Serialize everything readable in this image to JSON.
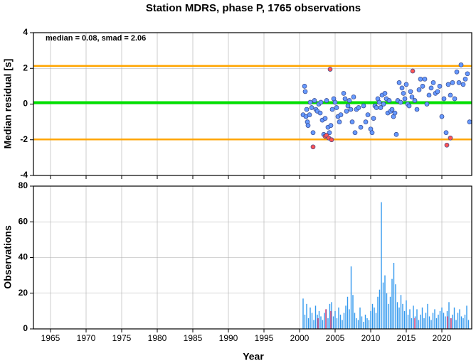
{
  "chart_data": [
    {
      "type": "scatter",
      "title": "Station MDRS, phase P, 1765 observations",
      "ylabel": "Median residual [s]",
      "annotation": "median = 0.08, smad = 2.06",
      "xlim": [
        1962.6,
        2024.2
      ],
      "xticks": [
        1965,
        1970,
        1975,
        1980,
        1985,
        1990,
        1995,
        2000,
        2005,
        2010,
        2015,
        2020
      ],
      "ylim": [
        -4,
        4
      ],
      "yticks": [
        -4,
        -2,
        0,
        2,
        4
      ],
      "grid": true,
      "hlines": [
        {
          "value": 2.14,
          "color": "#ffa500"
        },
        {
          "value": 0.08,
          "color": "#00e000"
        },
        {
          "value": -1.98,
          "color": "#ffa500"
        }
      ],
      "series": [
        {
          "color": "#6699ff",
          "x": [
            2000.5,
            2000.7,
            2000.8,
            2000.9,
            2001.0,
            2001.1,
            2001.2,
            2001.4,
            2001.5,
            2001.7,
            2001.9,
            2002.1,
            2002.3,
            2002.5,
            2002.7,
            2002.9,
            2003.0,
            2003.2,
            2003.4,
            2003.6,
            2003.8,
            2004.0,
            2004.2,
            2004.4,
            2004.6,
            2004.8,
            2005.0,
            2005.2,
            2005.4,
            2005.6,
            2005.8,
            2006.2,
            2006.4,
            2006.6,
            2006.8,
            2007.0,
            2007.2,
            2007.4,
            2007.6,
            2007.8,
            2008.0,
            2008.3,
            2008.6,
            2009.0,
            2009.3,
            2009.6,
            2010.0,
            2010.2,
            2010.4,
            2010.6,
            2010.8,
            2011.0,
            2011.2,
            2011.4,
            2011.6,
            2011.8,
            2012.0,
            2012.2,
            2012.4,
            2012.6,
            2012.8,
            2013.0,
            2013.2,
            2013.4,
            2013.6,
            2013.8,
            2014.0,
            2014.2,
            2014.4,
            2014.6,
            2014.8,
            2015.0,
            2015.2,
            2015.4,
            2015.6,
            2015.8,
            2016.2,
            2016.5,
            2016.8,
            2017.0,
            2017.3,
            2017.6,
            2017.9,
            2018.2,
            2018.5,
            2018.8,
            2019.1,
            2019.4,
            2019.7,
            2020.0,
            2020.3,
            2020.6,
            2020.9,
            2021.2,
            2021.5,
            2021.8,
            2022.1,
            2022.4,
            2022.7,
            2023.0,
            2023.3,
            2023.6,
            2023.9
          ],
          "values": [
            -0.6,
            1.0,
            0.7,
            -0.7,
            -0.3,
            -1.0,
            -1.2,
            -0.6,
            0.1,
            -0.2,
            -1.6,
            0.2,
            -0.3,
            -0.4,
            0.0,
            -0.5,
            0.1,
            -0.9,
            -1.7,
            -0.8,
            0.2,
            -1.3,
            -1.6,
            -1.2,
            -0.3,
            0.3,
            0.1,
            -0.2,
            -0.7,
            -1.0,
            -0.6,
            0.6,
            0.3,
            -0.4,
            -0.1,
            0.2,
            -0.3,
            -1.0,
            0.4,
            -1.6,
            -0.3,
            -0.2,
            -1.3,
            -0.1,
            -1.0,
            -0.6,
            -1.4,
            -1.6,
            -0.8,
            -0.1,
            -0.2,
            0.3,
            0.1,
            -0.2,
            0.5,
            0.0,
            0.6,
            0.3,
            -0.5,
            0.2,
            -0.4,
            -0.3,
            -0.7,
            -0.5,
            -1.7,
            0.2,
            1.2,
            0.1,
            0.9,
            0.6,
            0.3,
            1.1,
            0.0,
            -0.1,
            0.7,
            0.4,
            0.2,
            -0.3,
            0.8,
            1.4,
            1.0,
            1.4,
            0.0,
            0.5,
            0.9,
            1.2,
            0.6,
            0.7,
            1.0,
            -0.7,
            0.3,
            -1.6,
            1.1,
            0.5,
            1.2,
            0.3,
            1.8,
            1.2,
            2.2,
            1.1,
            1.4,
            1.7,
            -1.0
          ]
        },
        {
          "color": "#ff5555",
          "x": [
            2001.9,
            2003.6,
            2003.8,
            2004.1,
            2004.3,
            2004.5,
            2015.9,
            2020.7,
            2021.2
          ],
          "values": [
            -2.4,
            -1.8,
            -1.75,
            -1.9,
            1.95,
            -2.0,
            1.85,
            -2.3,
            -1.9
          ]
        }
      ]
    },
    {
      "type": "bar",
      "xlabel": "Year",
      "ylabel": "Observations",
      "xlim": [
        1962.6,
        2024.2
      ],
      "xticks": [
        1965,
        1970,
        1975,
        1980,
        1985,
        1990,
        1995,
        2000,
        2005,
        2010,
        2015,
        2020
      ],
      "ylim": [
        0,
        80
      ],
      "yticks": [
        0,
        20,
        40,
        60,
        80
      ],
      "grid": true,
      "series": [
        {
          "color": "#3399ee",
          "x": [
            2000.5,
            2000.75,
            2001,
            2001.25,
            2001.5,
            2001.75,
            2002,
            2002.25,
            2002.5,
            2002.75,
            2003,
            2003.25,
            2003.5,
            2003.75,
            2004,
            2004.25,
            2004.5,
            2004.75,
            2005,
            2005.25,
            2005.5,
            2005.75,
            2006,
            2006.25,
            2006.5,
            2006.75,
            2007,
            2007.25,
            2007.5,
            2007.75,
            2008,
            2008.25,
            2008.5,
            2008.75,
            2009,
            2009.25,
            2009.5,
            2009.75,
            2010,
            2010.25,
            2010.5,
            2010.75,
            2011,
            2011.25,
            2011.5,
            2011.75,
            2012,
            2012.25,
            2012.5,
            2012.75,
            2013,
            2013.25,
            2013.5,
            2013.75,
            2014,
            2014.25,
            2014.5,
            2014.75,
            2015,
            2015.25,
            2015.5,
            2015.75,
            2016,
            2016.25,
            2016.5,
            2016.75,
            2017,
            2017.25,
            2017.5,
            2017.75,
            2018,
            2018.25,
            2018.5,
            2018.75,
            2019,
            2019.25,
            2019.5,
            2019.75,
            2020,
            2020.25,
            2020.5,
            2020.75,
            2021,
            2021.25,
            2021.5,
            2021.75,
            2022,
            2022.25,
            2022.5,
            2022.75,
            2023,
            2023.25,
            2023.5,
            2023.75
          ],
          "values": [
            17,
            8,
            14,
            6,
            12,
            9,
            5,
            13,
            8,
            10,
            7,
            5,
            9,
            11,
            6,
            14,
            15,
            7,
            10,
            6,
            12,
            8,
            5,
            9,
            13,
            18,
            11,
            35,
            19,
            9,
            6,
            5,
            12,
            7,
            4,
            8,
            6,
            5,
            10,
            14,
            12,
            9,
            18,
            22,
            71,
            26,
            30,
            20,
            14,
            18,
            28,
            37,
            25,
            15,
            12,
            19,
            14,
            10,
            16,
            8,
            11,
            6,
            13,
            7,
            11,
            5,
            8,
            12,
            6,
            9,
            14,
            7,
            5,
            9,
            11,
            6,
            8,
            10,
            12,
            9,
            7,
            10,
            15,
            6,
            8,
            12,
            5,
            9,
            11,
            7,
            6,
            8,
            13,
            5
          ]
        },
        {
          "color": "#dd3366",
          "x": [
            2002.6,
            2003.7,
            2004.4,
            2016.2,
            2020.8,
            2021.3
          ],
          "values": [
            6,
            11,
            10,
            6,
            7,
            6
          ]
        }
      ]
    }
  ]
}
